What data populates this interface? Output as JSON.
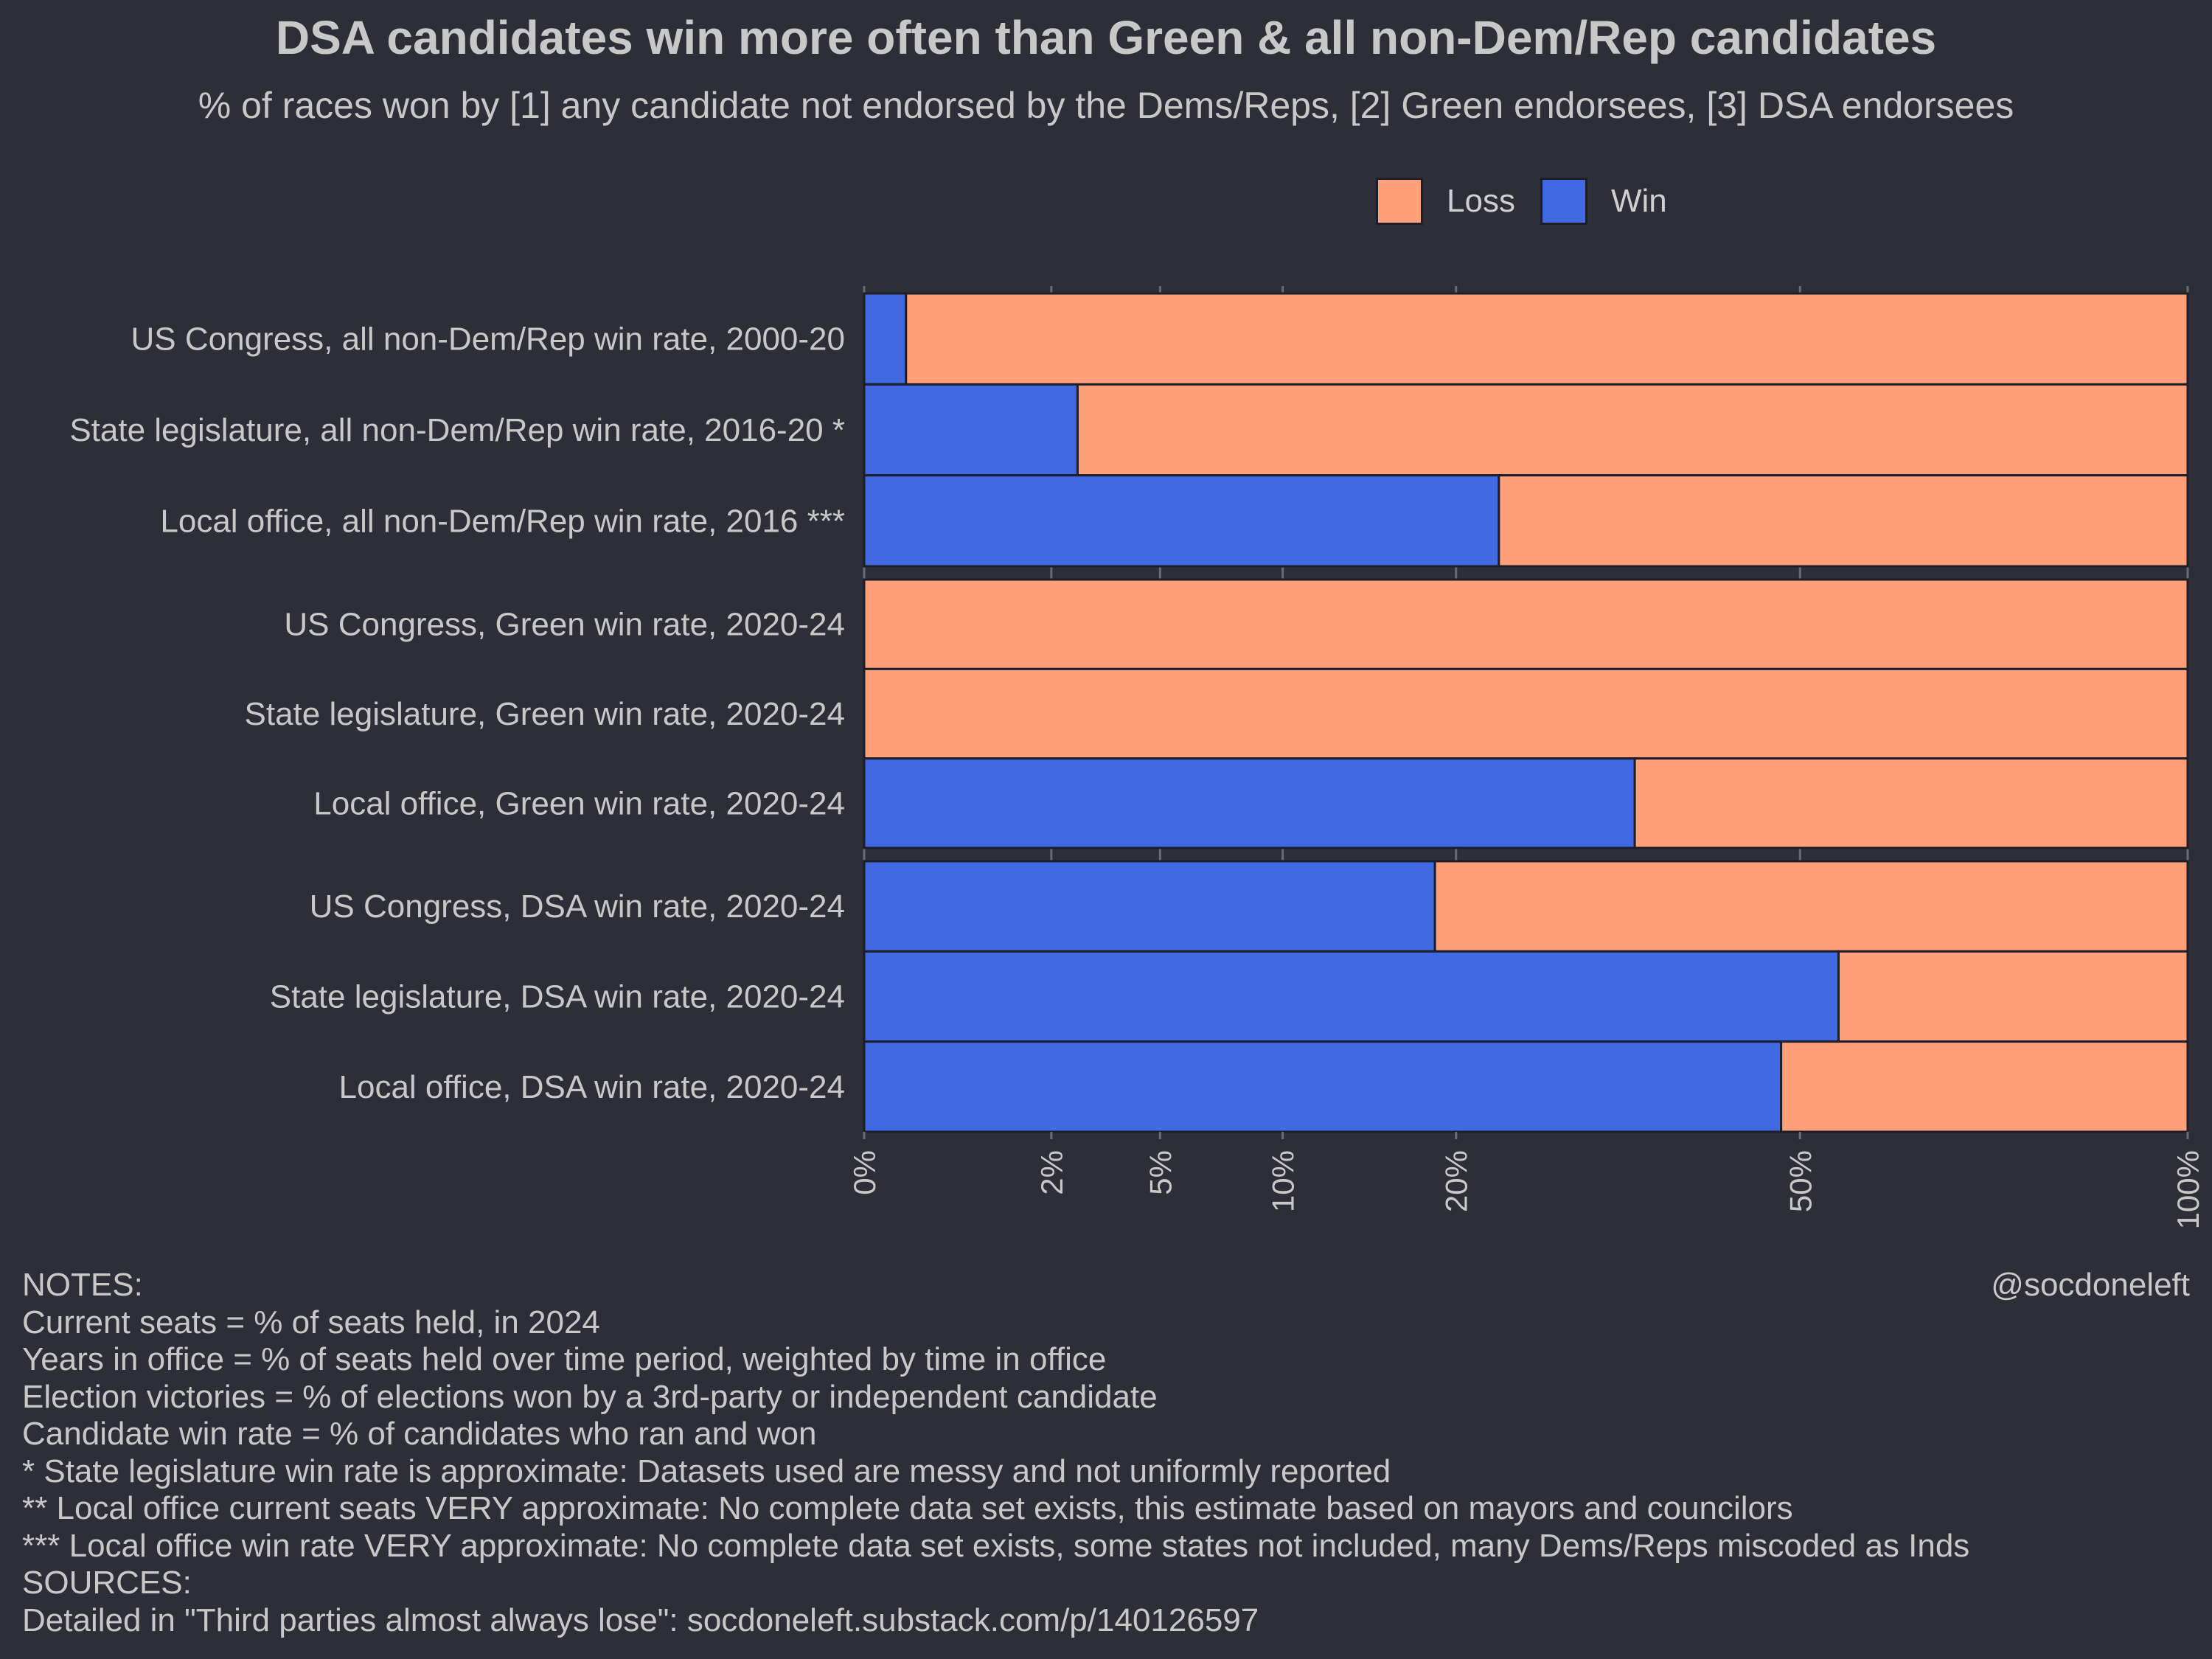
{
  "title": "DSA candidates win more often than Green & all non-Dem/Rep candidates",
  "subtitle": "% of races won by [1] any candidate not endorsed by the Dems/Reps, [2] Green endorsees, [3] DSA endorsees",
  "credit": "@socdoneleft",
  "colors": {
    "background": "#2e2e38",
    "win": "#4169e1",
    "loss": "#ffa07a",
    "text": "#c8c8c8"
  },
  "legend": [
    {
      "label": "Loss",
      "color": "#ffa07a"
    },
    {
      "label": "Win",
      "color": "#4169e1"
    }
  ],
  "chart_data": {
    "type": "bar",
    "orientation": "horizontal",
    "stacked": true,
    "x_scale": "sqrt",
    "xlim": [
      0,
      100
    ],
    "x_ticks": [
      0,
      2,
      5,
      10,
      20,
      50,
      100
    ],
    "x_tick_labels": [
      "0%",
      "2%",
      "5%",
      "10%",
      "20%",
      "50%",
      "100%"
    ],
    "legend_position": "top",
    "groups": [
      {
        "categories": [
          "US Congress, all non-Dem/Rep win rate, 2000-20",
          "State legislature, all non-Dem/Rep win rate, 2016-20 *",
          "Local office, all non-Dem/Rep win rate, 2016 ***"
        ]
      },
      {
        "categories": [
          "US Congress, Green win rate, 2020-24",
          "State legislature, Green win rate, 2020-24",
          "Local office, Green win rate, 2020-24"
        ]
      },
      {
        "categories": [
          "US Congress, DSA win rate, 2020-24",
          "State legislature, DSA win rate, 2020-24",
          "Local office, DSA win rate, 2020-24"
        ]
      }
    ],
    "series": [
      {
        "name": "Win",
        "values": [
          [
            0.1,
            2.6,
            23.0
          ],
          [
            0,
            0,
            33.9
          ],
          [
            18.6,
            54.2,
            48.0
          ]
        ]
      },
      {
        "name": "Loss",
        "values": [
          [
            99.9,
            97.4,
            77.0
          ],
          [
            100,
            100,
            66.1
          ],
          [
            81.4,
            45.8,
            52.0
          ]
        ]
      }
    ]
  },
  "notes": [
    "NOTES:",
    "Current seats = % of seats held, in 2024",
    "Years in office = % of seats held over time period, weighted by time in office",
    "Election victories = % of elections won by a 3rd-party or independent candidate",
    "Candidate win rate = % of candidates who ran and won",
    "* State legislature win rate is approximate: Datasets used are messy and not uniformly reported",
    "** Local office current seats VERY approximate: No complete data set exists, this estimate based on mayors and councilors",
    "*** Local office win rate VERY approximate: No complete data set exists, some states not included, many Dems/Reps miscoded as Inds",
    "SOURCES:",
    "Detailed in \"Third parties almost always lose\": socdoneleft.substack.com/p/140126597"
  ]
}
